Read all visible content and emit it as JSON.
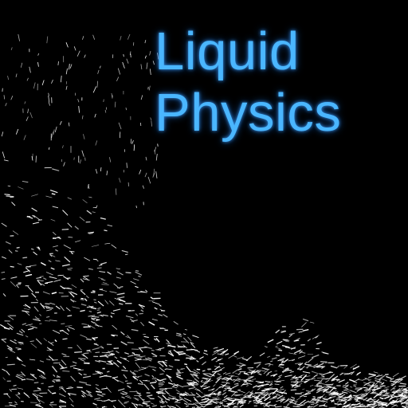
{
  "app": {
    "title_line1": "Liquid",
    "title_line2": "Physics"
  },
  "theme": {
    "background": "#000000",
    "title_color": "#4ab6ff",
    "particle_color": "#ffffff"
  }
}
